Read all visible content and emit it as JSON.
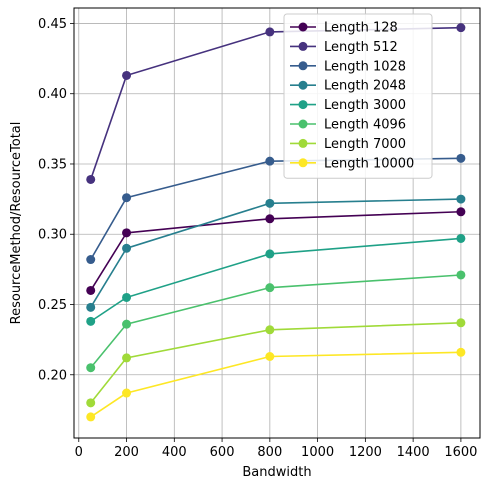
{
  "chart_data": {
    "type": "line",
    "title": "",
    "xlabel": "Bandwidth",
    "ylabel": "ResourceMethod/ResourceTotal",
    "x": [
      50,
      200,
      800,
      1600
    ],
    "xlim": [
      -20,
      1680
    ],
    "ylim": [
      0.155,
      0.461
    ],
    "xticks": [
      0,
      200,
      400,
      600,
      800,
      1000,
      1200,
      1400,
      1600
    ],
    "yticks": [
      0.2,
      0.25,
      0.3,
      0.35,
      0.4,
      0.45
    ],
    "xtick_labels": [
      "0",
      "200",
      "400",
      "600",
      "800",
      "1000",
      "1200",
      "1400",
      "1600"
    ],
    "ytick_labels": [
      "0.20",
      "0.25",
      "0.30",
      "0.35",
      "0.40",
      "0.45"
    ],
    "grid": true,
    "legend_position": "top-right",
    "series": [
      {
        "name": "Length 128",
        "color": "#440154",
        "values": [
          0.26,
          0.301,
          0.311,
          0.316
        ]
      },
      {
        "name": "Length 512",
        "color": "#46327e",
        "values": [
          0.339,
          0.413,
          0.444,
          0.447
        ]
      },
      {
        "name": "Length 1028",
        "color": "#365c8d",
        "values": [
          0.282,
          0.326,
          0.352,
          0.354
        ]
      },
      {
        "name": "Length 2048",
        "color": "#277f8e",
        "values": [
          0.248,
          0.29,
          0.322,
          0.325
        ]
      },
      {
        "name": "Length 3000",
        "color": "#1fa187",
        "values": [
          0.238,
          0.255,
          0.286,
          0.297
        ]
      },
      {
        "name": "Length 4096",
        "color": "#4ac16d",
        "values": [
          0.205,
          0.236,
          0.262,
          0.271
        ]
      },
      {
        "name": "Length 7000",
        "color": "#a0da39",
        "values": [
          0.18,
          0.212,
          0.232,
          0.237
        ]
      },
      {
        "name": "Length 10000",
        "color": "#fde725",
        "values": [
          0.17,
          0.187,
          0.213,
          0.216
        ]
      }
    ]
  }
}
